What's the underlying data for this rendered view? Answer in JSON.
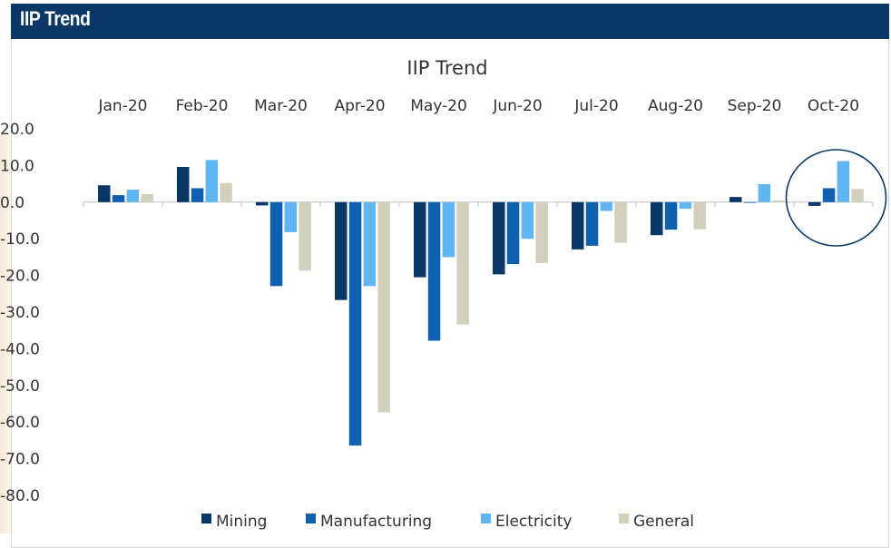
{
  "header": {
    "title": "IIP Trend"
  },
  "chart_data": {
    "type": "bar",
    "title": "IIP Trend",
    "xlabel": "",
    "ylabel": "",
    "categories": [
      "Jan-20",
      "Feb-20",
      "Mar-20",
      "Apr-20",
      "May-20",
      "Jun-20",
      "Jul-20",
      "Aug-20",
      "Sep-20",
      "Oct-20"
    ],
    "ylim": [
      -80,
      20
    ],
    "y_ticks": [
      "20.0",
      "10.0",
      "0.0",
      "-10.0",
      "-20.0",
      "-30.0",
      "-40.0",
      "-50.0",
      "-60.0",
      "-70.0",
      "-80.0"
    ],
    "grid": false,
    "legend_position": "bottom",
    "category_labels_position": "top",
    "series": [
      {
        "name": "Mining",
        "color": "#0b3766",
        "values": [
          4.6,
          9.6,
          -0.9,
          -26.7,
          -20.5,
          -19.7,
          -12.9,
          -9.0,
          1.4,
          -1.0
        ]
      },
      {
        "name": "Manufacturing",
        "color": "#1060b0",
        "values": [
          1.9,
          3.8,
          -22.9,
          -66.4,
          -37.8,
          -16.9,
          -11.9,
          -7.5,
          -0.1,
          3.8
        ]
      },
      {
        "name": "Electricity",
        "color": "#60b6f2",
        "values": [
          3.4,
          11.5,
          -8.2,
          -22.9,
          -15.0,
          -10.0,
          -2.4,
          -1.8,
          4.9,
          11.2
        ]
      },
      {
        "name": "General",
        "color": "#d2cfbd",
        "values": [
          2.2,
          5.2,
          -18.7,
          -57.3,
          -33.4,
          -16.6,
          -11.1,
          -7.4,
          0.5,
          3.6
        ]
      }
    ],
    "highlight": {
      "category": "Oct-20",
      "shape": "ellipse",
      "color": "#0b3766"
    }
  }
}
